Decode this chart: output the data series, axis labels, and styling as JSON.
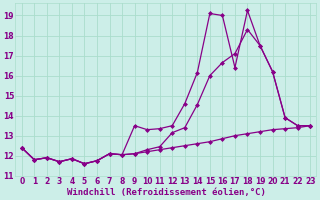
{
  "background_color": "#cceee8",
  "grid_color": "#aaddcc",
  "line_color": "#880088",
  "marker": "D",
  "marker_size": 2.0,
  "line_width": 0.9,
  "xlim": [
    -0.5,
    23.5
  ],
  "ylim": [
    11,
    19.6
  ],
  "yticks": [
    11,
    12,
    13,
    14,
    15,
    16,
    17,
    18,
    19
  ],
  "xticks": [
    0,
    1,
    2,
    3,
    4,
    5,
    6,
    7,
    8,
    9,
    10,
    11,
    12,
    13,
    14,
    15,
    16,
    17,
    18,
    19,
    20,
    21,
    22,
    23
  ],
  "xlabel": "Windchill (Refroidissement éolien,°C)",
  "xlabel_fontsize": 6.5,
  "tick_fontsize": 5.5,
  "series1_y": [
    12.4,
    11.8,
    11.9,
    11.7,
    11.85,
    11.6,
    11.75,
    12.1,
    12.05,
    13.5,
    13.3,
    13.35,
    13.5,
    14.6,
    16.15,
    19.1,
    19.0,
    16.4,
    19.25,
    17.5,
    16.2,
    13.9,
    13.5,
    13.5
  ],
  "series2_y": [
    12.4,
    11.8,
    11.9,
    11.7,
    11.85,
    11.6,
    11.75,
    12.1,
    12.05,
    12.1,
    12.3,
    12.45,
    13.15,
    13.4,
    14.55,
    16.0,
    16.65,
    17.1,
    18.3,
    17.5,
    16.2,
    13.9,
    13.5,
    13.5
  ],
  "series3_y": [
    12.4,
    11.8,
    11.9,
    11.7,
    11.85,
    11.6,
    11.75,
    12.1,
    12.05,
    12.1,
    12.2,
    12.3,
    12.4,
    12.5,
    12.6,
    12.7,
    12.85,
    13.0,
    13.1,
    13.2,
    13.3,
    13.35,
    13.4,
    13.5
  ]
}
